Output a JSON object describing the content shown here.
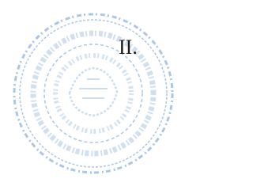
{
  "heading": {
    "numeral": "II."
  }
}
